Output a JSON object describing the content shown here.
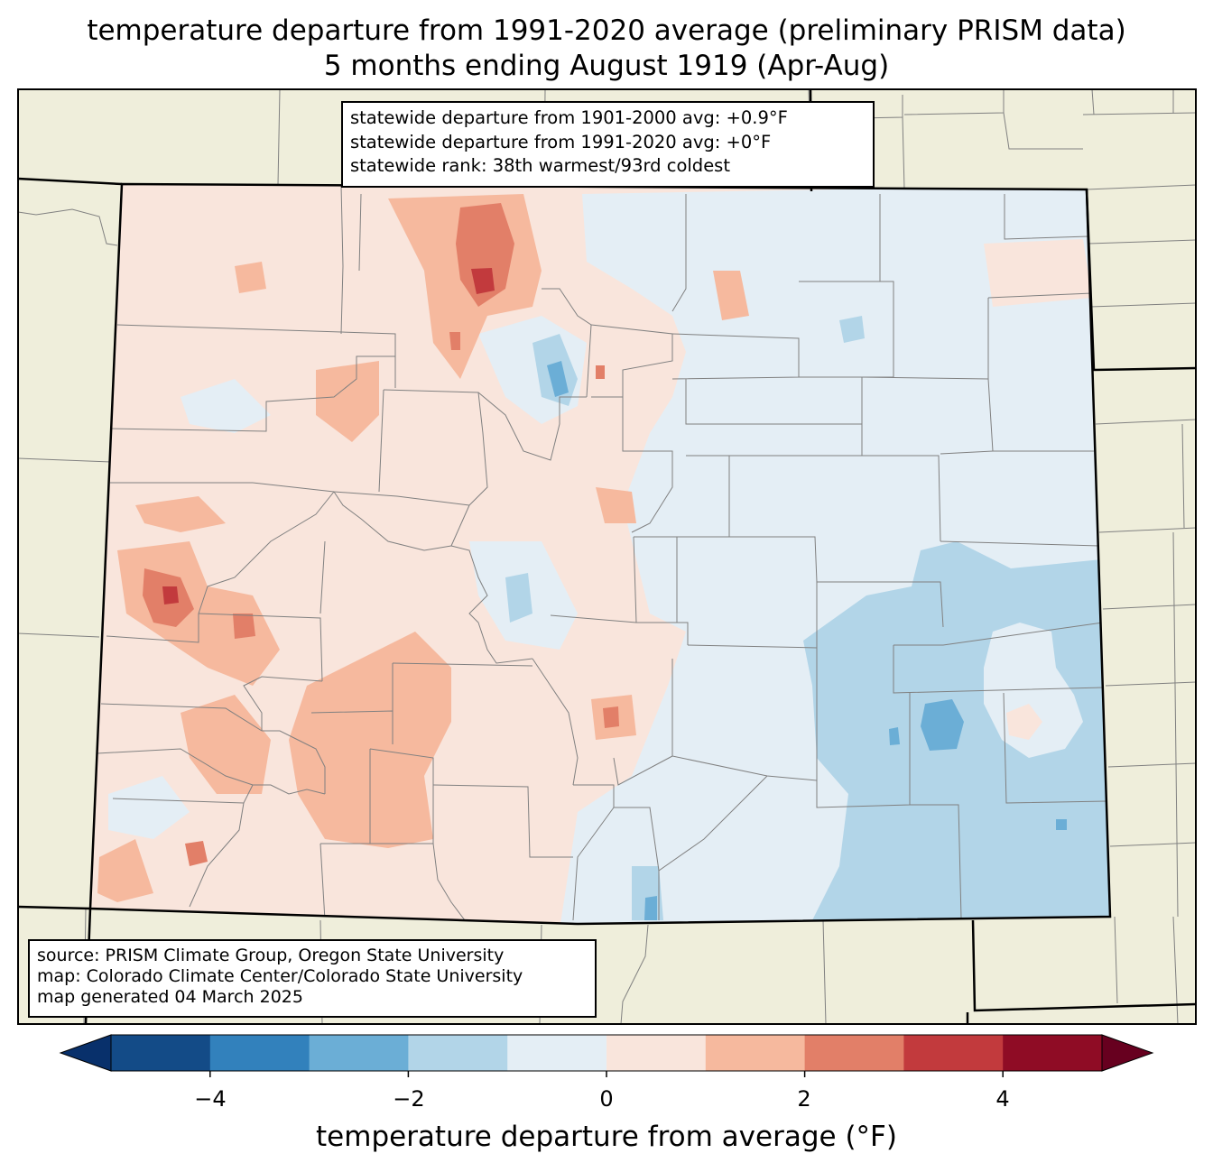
{
  "title": {
    "line1": "temperature departure from 1991-2020 average (preliminary PRISM data)",
    "line2": "5 months ending August 1919 (Apr-Aug)"
  },
  "stats": {
    "line1": "statewide departure from 1901-2000 avg: +0.9°F",
    "line2": "statewide departure from 1991-2020 avg: +0°F",
    "line3": "statewide rank: 38th warmest/93rd coldest"
  },
  "source": {
    "line1": "source: PRISM Climate Group, Oregon State University",
    "line2": "map: Colorado Climate Center/Colorado State University",
    "line3": "map generated 04 March 2025"
  },
  "colorbar": {
    "label": "temperature departure from average (°F)",
    "ticks": [
      "−4",
      "−2",
      "0",
      "2",
      "4"
    ],
    "bins": [
      {
        "range": "<-5",
        "color": "#08306b"
      },
      {
        "range": "-5 to -4",
        "color": "#134b87"
      },
      {
        "range": "-4 to -3",
        "color": "#3281bc"
      },
      {
        "range": "-3 to -2",
        "color": "#6baed6"
      },
      {
        "range": "-2 to -1",
        "color": "#b2d5e8"
      },
      {
        "range": "-1 to 0",
        "color": "#e4eef5"
      },
      {
        "range": "0 to 1",
        "color": "#f9e5dc"
      },
      {
        "range": "1 to 2",
        "color": "#f6b99e"
      },
      {
        "range": "2 to 3",
        "color": "#e27f68"
      },
      {
        "range": "3 to 4",
        "color": "#c23a3d"
      },
      {
        "range": "4 to 5",
        "color": "#8f0c25"
      },
      {
        "range": ">5",
        "color": "#67001f"
      }
    ]
  },
  "map_colors": {
    "land_outside": "#efeedb",
    "state_border": "#000000",
    "county_border": "#808080"
  }
}
